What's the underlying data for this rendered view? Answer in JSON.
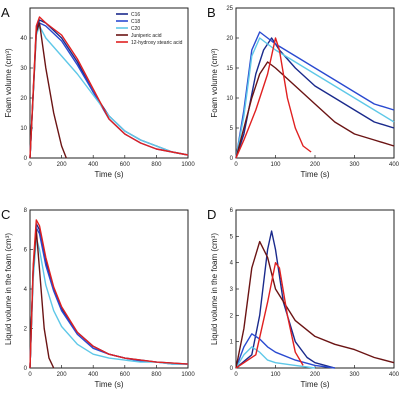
{
  "chart_data": [
    {
      "panel": "A",
      "type": "line",
      "xlabel": "Time (s)",
      "ylabel": "Foam volume (cm³)",
      "xlim": [
        0,
        1000
      ],
      "ylim": [
        0,
        50
      ],
      "xticks": [
        0,
        200,
        400,
        600,
        800,
        1000
      ],
      "yticks": [
        0,
        10,
        20,
        30,
        40
      ],
      "legend": "top-right",
      "series": [
        {
          "name": "C16",
          "color": "#1a2a8c",
          "x": [
            0,
            40,
            60,
            100,
            200,
            300,
            400,
            500,
            600,
            700,
            800,
            900,
            1000
          ],
          "y": [
            0,
            43,
            46,
            45,
            40,
            32,
            22,
            14,
            9,
            6,
            4,
            2,
            1
          ]
        },
        {
          "name": "C18",
          "color": "#2a4ad0",
          "x": [
            0,
            40,
            60,
            100,
            200,
            300,
            400,
            500,
            600,
            700,
            800,
            900,
            1000
          ],
          "y": [
            0,
            42,
            45,
            44,
            39,
            31,
            22,
            13,
            8,
            5,
            3,
            2,
            1
          ]
        },
        {
          "name": "C20",
          "color": "#5fc8e8",
          "x": [
            0,
            40,
            60,
            100,
            200,
            300,
            400,
            500,
            600,
            700,
            800,
            900,
            1000
          ],
          "y": [
            0,
            41,
            44,
            40,
            34,
            28,
            21,
            14,
            9,
            6,
            4,
            2,
            1
          ]
        },
        {
          "name": "Juniperic acid",
          "color": "#6b1414",
          "x": [
            0,
            40,
            60,
            100,
            150,
            200,
            230
          ],
          "y": [
            0,
            42,
            45,
            30,
            15,
            4,
            0
          ]
        },
        {
          "name": "12-hydroxy stearic acid",
          "color": "#e02020",
          "x": [
            0,
            40,
            60,
            100,
            200,
            300,
            400,
            500,
            600,
            700,
            800,
            900,
            1000
          ],
          "y": [
            0,
            44,
            47,
            45,
            41,
            33,
            23,
            13,
            8,
            5,
            3,
            2,
            1
          ]
        }
      ]
    },
    {
      "panel": "B",
      "type": "line",
      "xlabel": "Time (s)",
      "ylabel": "Foam volume (cm³)",
      "xlim": [
        0,
        400
      ],
      "ylim": [
        0,
        25
      ],
      "xticks": [
        0,
        100,
        200,
        300,
        400
      ],
      "yticks": [
        0,
        5,
        10,
        15,
        20,
        25
      ],
      "series": [
        {
          "name": "C16",
          "color": "#1a2a8c",
          "x": [
            0,
            20,
            50,
            70,
            90,
            110,
            150,
            200,
            250,
            300,
            350,
            400
          ],
          "y": [
            0,
            4,
            14,
            18,
            20,
            18,
            15,
            12,
            10,
            8,
            6,
            5
          ]
        },
        {
          "name": "C18",
          "color": "#2a4ad0",
          "x": [
            0,
            20,
            40,
            60,
            80,
            100,
            150,
            200,
            250,
            300,
            350,
            400
          ],
          "y": [
            0,
            8,
            18,
            21,
            20,
            19,
            17,
            15,
            13,
            11,
            9,
            8
          ]
        },
        {
          "name": "C20",
          "color": "#5fc8e8",
          "x": [
            0,
            20,
            40,
            60,
            80,
            100,
            150,
            200,
            250,
            300,
            350,
            400
          ],
          "y": [
            0,
            7,
            17,
            20,
            19,
            18,
            16,
            14,
            12,
            10,
            8,
            6
          ]
        },
        {
          "name": "Juniperic acid",
          "color": "#6b1414",
          "x": [
            0,
            20,
            40,
            60,
            80,
            100,
            150,
            200,
            250,
            300,
            350,
            400
          ],
          "y": [
            0,
            5,
            10,
            14,
            16,
            15,
            12,
            9,
            6,
            4,
            3,
            2
          ]
        },
        {
          "name": "12-hydroxy stearic acid",
          "color": "#e02020",
          "x": [
            0,
            20,
            50,
            80,
            100,
            110,
            130,
            150,
            170,
            190
          ],
          "y": [
            0,
            3,
            8,
            14,
            20,
            18,
            10,
            5,
            2,
            1
          ]
        }
      ]
    },
    {
      "panel": "C",
      "type": "line",
      "xlabel": "Time (s)",
      "ylabel": "Liquid volume in the foam (cm³)",
      "xlim": [
        0,
        1000
      ],
      "ylim": [
        0,
        8
      ],
      "xticks": [
        0,
        200,
        400,
        600,
        800,
        1000
      ],
      "yticks": [
        0,
        2,
        4,
        6,
        8
      ],
      "series": [
        {
          "name": "C16",
          "color": "#1a2a8c",
          "x": [
            0,
            20,
            40,
            60,
            100,
            150,
            200,
            300,
            400,
            500,
            600,
            700,
            800,
            900,
            1000
          ],
          "y": [
            0,
            5,
            7.3,
            7,
            5.4,
            4,
            3,
            1.8,
            1.1,
            0.7,
            0.5,
            0.4,
            0.3,
            0.25,
            0.2
          ]
        },
        {
          "name": "C18",
          "color": "#2a4ad0",
          "x": [
            0,
            20,
            40,
            60,
            100,
            150,
            200,
            300,
            400,
            500,
            600,
            700,
            800,
            900,
            1000
          ],
          "y": [
            0,
            5,
            7.1,
            6.8,
            5.2,
            3.9,
            2.9,
            1.7,
            1,
            0.7,
            0.5,
            0.35,
            0.3,
            0.2,
            0.2
          ]
        },
        {
          "name": "C20",
          "color": "#5fc8e8",
          "x": [
            0,
            20,
            40,
            60,
            100,
            150,
            200,
            300,
            400,
            500,
            600,
            700,
            800,
            900,
            1000
          ],
          "y": [
            0,
            4.5,
            6.6,
            6,
            4.2,
            2.9,
            2.1,
            1.2,
            0.7,
            0.5,
            0.4,
            0.3,
            0.3,
            0.2,
            0.2
          ]
        },
        {
          "name": "Juniperic acid",
          "color": "#6b1414",
          "x": [
            0,
            20,
            40,
            60,
            90,
            120,
            150
          ],
          "y": [
            0,
            5,
            7,
            5,
            2,
            0.5,
            0
          ]
        },
        {
          "name": "12-hydroxy stearic acid",
          "color": "#e02020",
          "x": [
            0,
            20,
            40,
            60,
            100,
            150,
            200,
            300,
            400,
            500,
            600,
            700,
            800,
            900,
            1000
          ],
          "y": [
            0,
            5.2,
            7.5,
            7.2,
            5.6,
            4.1,
            3.1,
            1.8,
            1.1,
            0.7,
            0.5,
            0.4,
            0.3,
            0.25,
            0.2
          ]
        }
      ]
    },
    {
      "panel": "D",
      "type": "line",
      "xlabel": "Time (s)",
      "ylabel": "Liquid volume in the foam (cm³)",
      "xlim": [
        0,
        400
      ],
      "ylim": [
        0,
        6
      ],
      "xticks": [
        0,
        100,
        200,
        300,
        400
      ],
      "yticks": [
        0,
        1,
        2,
        3,
        4,
        5,
        6
      ],
      "series": [
        {
          "name": "C16",
          "color": "#1a2a8c",
          "x": [
            0,
            40,
            60,
            80,
            90,
            100,
            120,
            150,
            180,
            200,
            250
          ],
          "y": [
            0,
            0.5,
            2,
            4.5,
            5.2,
            4.5,
            2.5,
            1,
            0.4,
            0.2,
            0
          ]
        },
        {
          "name": "C18",
          "color": "#2a4ad0",
          "x": [
            0,
            20,
            40,
            60,
            80,
            100,
            150,
            200,
            250
          ],
          "y": [
            0,
            0.8,
            1.3,
            1.1,
            0.8,
            0.6,
            0.3,
            0.1,
            0
          ]
        },
        {
          "name": "C20",
          "color": "#5fc8e8",
          "x": [
            0,
            20,
            40,
            60,
            80,
            100,
            150,
            200
          ],
          "y": [
            0,
            0.5,
            0.8,
            0.6,
            0.3,
            0.2,
            0.1,
            0
          ]
        },
        {
          "name": "Juniperic acid",
          "color": "#6b1414",
          "x": [
            0,
            20,
            40,
            60,
            80,
            100,
            150,
            200,
            250,
            300,
            350,
            400
          ],
          "y": [
            0,
            1.5,
            3.8,
            4.8,
            4.2,
            3,
            1.8,
            1.2,
            0.9,
            0.7,
            0.4,
            0.2
          ]
        },
        {
          "name": "12-hydroxy stearic acid",
          "color": "#e02020",
          "x": [
            0,
            50,
            80,
            100,
            110,
            130,
            150,
            170
          ],
          "y": [
            0,
            0.5,
            2.5,
            4,
            3.8,
            2,
            0.6,
            0.1
          ]
        }
      ]
    }
  ]
}
